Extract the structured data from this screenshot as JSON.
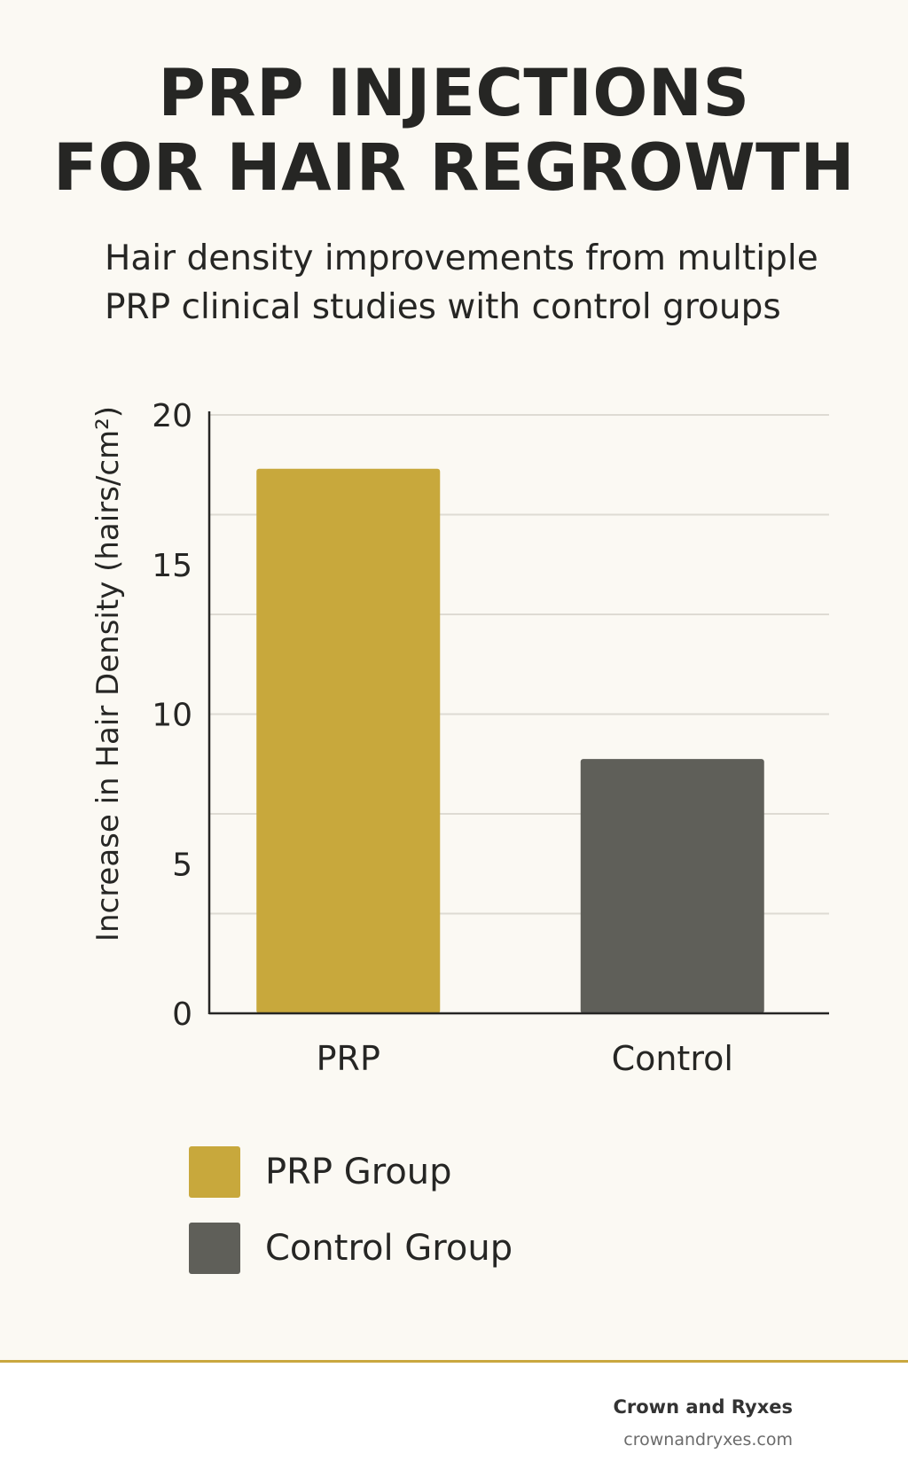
{
  "header": {
    "title_lines": [
      "PRP INJECTIONS",
      "FOR HAIR REGROWTH"
    ],
    "subtitle_lines": [
      "Hair density improvements from multiple",
      "PRP clinical studies with control groups"
    ]
  },
  "colors": {
    "background": "#fbf9f3",
    "prp": "#c8a83c",
    "control": "#5f5f59",
    "accent_rule": "#c9a73f"
  },
  "chart_data": {
    "type": "bar",
    "categories": [
      "PRP",
      "Control"
    ],
    "values": [
      18.2,
      8.5
    ],
    "colors": [
      "#c8a83c",
      "#5f5f59"
    ],
    "xlabel": "",
    "ylabel": "Increase in Hair Density (hairs/cm²)",
    "yticks": [
      0,
      5,
      10,
      15,
      20
    ],
    "ylim": [
      0,
      20
    ],
    "grid": true,
    "legend": [
      {
        "label": "PRP Group",
        "color": "#c8a83c"
      },
      {
        "label": "Control Group",
        "color": "#5f5f59"
      }
    ],
    "legend_position": "bottom-left"
  },
  "footer": {
    "brand": "Crown and Ryxes",
    "url": "crownandryxes.com"
  }
}
